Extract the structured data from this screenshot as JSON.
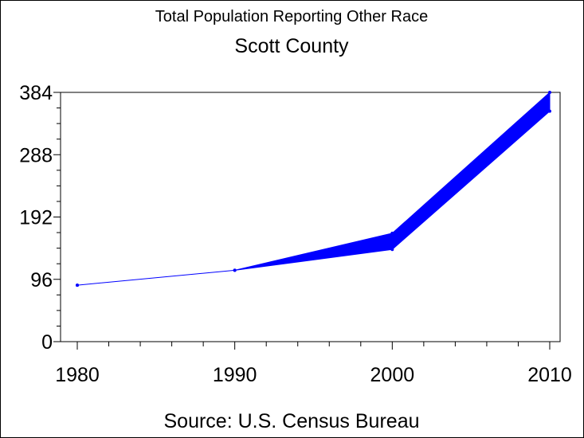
{
  "chart_data": {
    "type": "line",
    "title": "Total Population Reporting Other Race",
    "subtitle": "Scott County",
    "source": "Source: U.S. Census Bureau",
    "x": [
      1980,
      1990,
      2000,
      2010
    ],
    "x_tick_labels": [
      "1980",
      "1990",
      "2000",
      "2010"
    ],
    "xlim": [
      1980,
      2010
    ],
    "y_ticks": [
      0,
      96,
      192,
      288,
      384
    ],
    "y_tick_labels": [
      "0",
      "96",
      "192",
      "288",
      "384"
    ],
    "ylim": [
      0,
      384
    ],
    "series": [
      {
        "values_lower": [
          87,
          110,
          142,
          355
        ],
        "values_upper": [
          87,
          110,
          167,
          384
        ]
      }
    ],
    "colors": {
      "series": "#0000ff",
      "axis": "#000000"
    },
    "grid": false
  }
}
